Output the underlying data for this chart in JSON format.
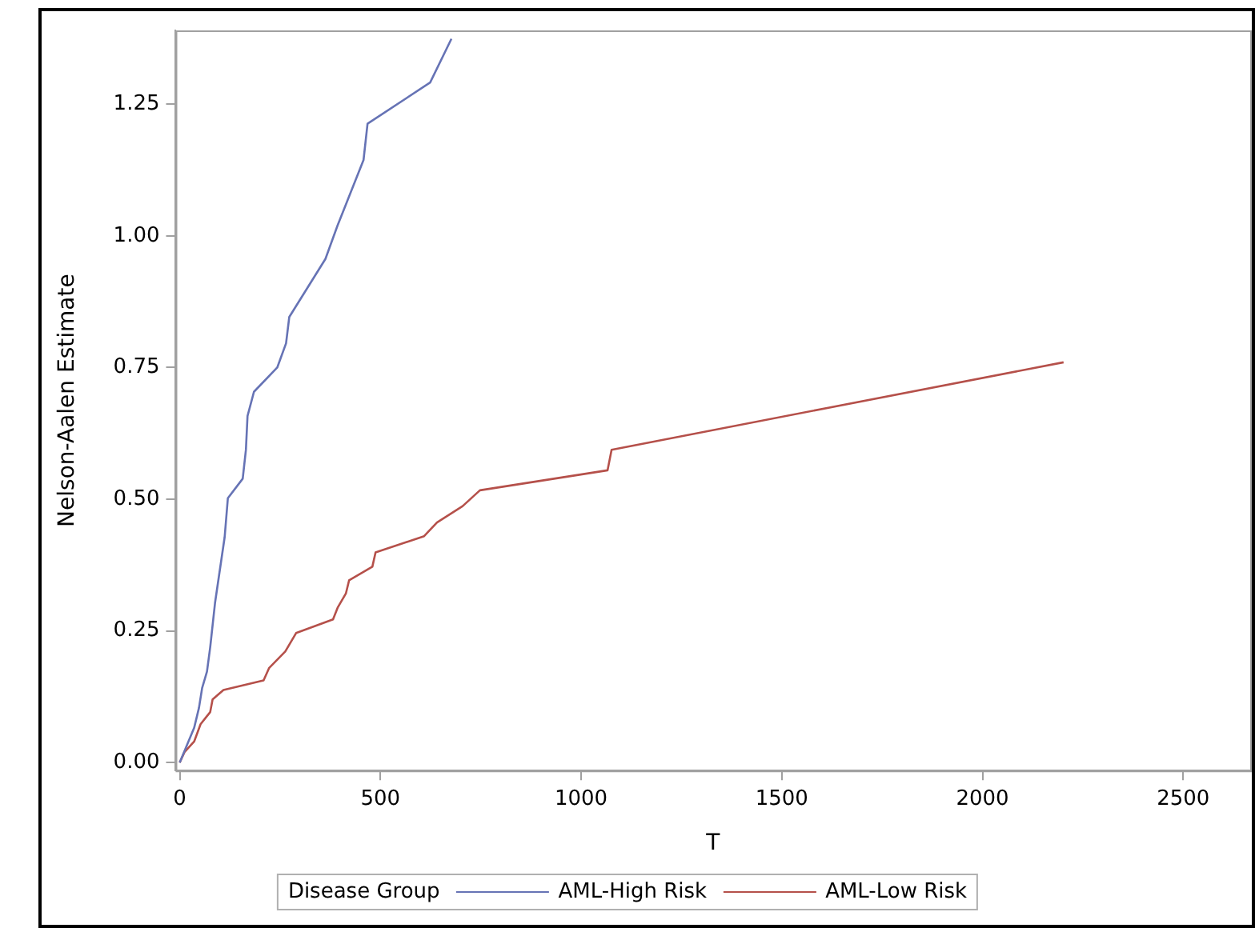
{
  "chart_data": {
    "type": "line",
    "xlabel": "T",
    "ylabel": "Nelson-Aalen Estimate",
    "legend_title": "Disease Group",
    "legend": "bottom",
    "grid": false,
    "marker": "none",
    "line_style": "solid",
    "xlim": [
      -10,
      2667
    ],
    "xticks": [
      0,
      500,
      1000,
      1500,
      2000,
      2500
    ],
    "ylim": [
      -0.015,
      1.39
    ],
    "yticks": [
      {
        "value": 0,
        "label": "0.00"
      },
      {
        "value": 0.25,
        "label": "0.25"
      },
      {
        "value": 0.5,
        "label": "0.50"
      },
      {
        "value": 0.75,
        "label": "0.75"
      },
      {
        "value": 1,
        "label": "1.00"
      },
      {
        "value": 1.25,
        "label": "1.25"
      }
    ],
    "series": [
      {
        "name": "AML-High Risk",
        "color": "#6673b5",
        "x": [
          0,
          36,
          48,
          56,
          68,
          76,
          88,
          112,
          120,
          157,
          165,
          169,
          185,
          243,
          265,
          273,
          363,
          393,
          458,
          468,
          624,
          677
        ],
        "values": [
          0,
          0.066,
          0.104,
          0.142,
          0.173,
          0.219,
          0.303,
          0.428,
          0.502,
          0.539,
          0.594,
          0.658,
          0.704,
          0.75,
          0.796,
          0.846,
          0.956,
          1.019,
          1.144,
          1.213,
          1.291,
          1.374
        ]
      },
      {
        "name": "AML-Low Risk",
        "color": "#b5504a",
        "x": [
          0,
          12,
          36,
          52,
          76,
          82,
          109,
          209,
          223,
          263,
          290,
          382,
          394,
          414,
          422,
          480,
          488,
          609,
          641,
          705,
          748,
          1066,
          1076,
          2202
        ],
        "values": [
          0,
          0.02,
          0.04,
          0.073,
          0.096,
          0.12,
          0.138,
          0.156,
          0.18,
          0.211,
          0.246,
          0.272,
          0.295,
          0.321,
          0.346,
          0.372,
          0.399,
          0.43,
          0.456,
          0.487,
          0.517,
          0.555,
          0.594,
          0.76
        ]
      }
    ]
  }
}
